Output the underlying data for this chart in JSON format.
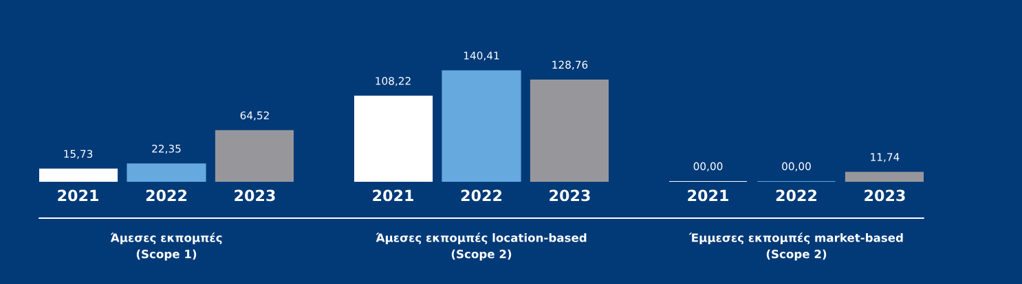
{
  "chart_data": [
    {
      "type": "bar",
      "xlabel": "Άμεσες εκπομπές\n(Scope 1)",
      "categories": [
        "2021",
        "2022",
        "2023"
      ],
      "values": [
        15.73,
        22.35,
        64.52
      ],
      "colors": [
        "#ffffff",
        "#65a9de",
        "#97979b"
      ],
      "value_labels": [
        "15,73",
        "22,35",
        "64,52"
      ]
    },
    {
      "type": "bar",
      "xlabel": "Άμεσες εκπομπές location-based\n(Scope 2)",
      "categories": [
        "2021",
        "2022",
        "2023"
      ],
      "values": [
        108.22,
        140.41,
        128.76
      ],
      "colors": [
        "#ffffff",
        "#65a9de",
        "#97979b"
      ],
      "value_labels": [
        "108,22",
        "140,41",
        "128,76"
      ]
    },
    {
      "type": "bar",
      "xlabel": "Έμμεσες εκπομπές market-based\n(Scope 2)",
      "categories": [
        "2021",
        "2022",
        "2023"
      ],
      "values": [
        0,
        0,
        11.74
      ],
      "colors": [
        "#ffffff",
        "#65a9de",
        "#97979b"
      ],
      "value_labels": [
        "00,00",
        "00,00",
        "11,74"
      ]
    }
  ]
}
